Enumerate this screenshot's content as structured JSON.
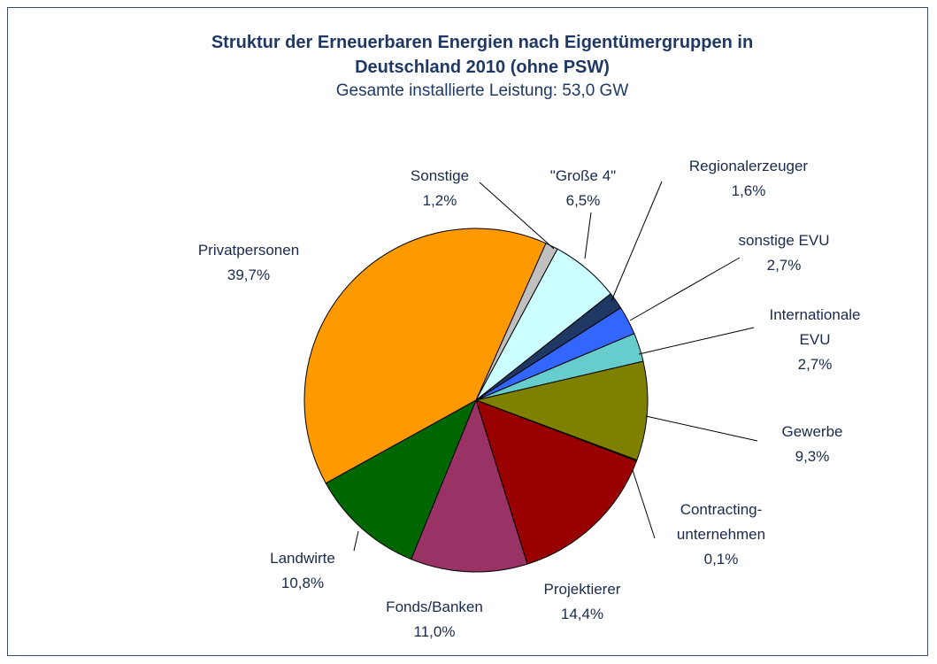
{
  "chart_data": {
    "type": "pie",
    "title": "Struktur der Erneuerbaren Energien nach Eigentümergruppen in\nDeutschland 2010 (ohne PSW)",
    "subtitle": "Gesamte installierte Leistung: 53,0 GW",
    "categories": [
      "Sonstige",
      "\"Große 4\"",
      "Regionalerzeuger",
      "sonstige EVU",
      "Internationale EVU",
      "Gewerbe",
      "Contracting-\nunternehmen",
      "Projektierer",
      "Fonds/Banken",
      "Landwirte",
      "Privatpersonen"
    ],
    "values": [
      1.2,
      6.5,
      1.6,
      2.7,
      2.7,
      9.3,
      0.1,
      14.4,
      11.0,
      10.8,
      39.7
    ],
    "value_labels": [
      "1,2%",
      "6,5%",
      "1,6%",
      "2,7%",
      "2,7%",
      "9,3%",
      "0,1%",
      "14,4%",
      "11,0%",
      "10,8%",
      "39,7%"
    ],
    "colors": [
      "#c0c0c0",
      "#ccffff",
      "#1f3864",
      "#3366ff",
      "#66cccc",
      "#808000",
      "#ffff99",
      "#990000",
      "#993366",
      "#006600",
      "#ff9900"
    ]
  }
}
